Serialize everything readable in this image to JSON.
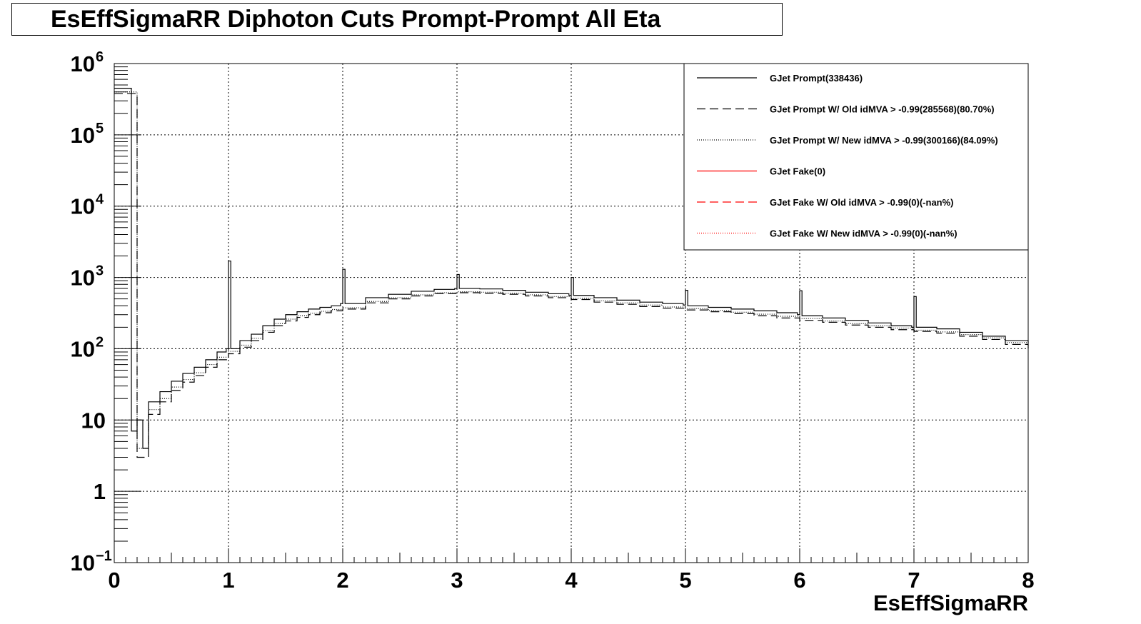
{
  "chart_data": {
    "type": "line",
    "title": "EsEffSigmaRR Diphoton Cuts Prompt-Prompt All Eta",
    "xlabel": "EsEffSigmaRR",
    "ylabel": "",
    "xlim": [
      0,
      8
    ],
    "ylim": [
      0.1,
      1000000
    ],
    "yscale": "log",
    "grid": true,
    "x_ticks": [
      "0",
      "1",
      "2",
      "3",
      "4",
      "5",
      "6",
      "7",
      "8"
    ],
    "y_ticks": [
      {
        "base": "10",
        "exp": "−1",
        "value": 0.1
      },
      {
        "base": "1",
        "exp": "",
        "value": 1
      },
      {
        "base": "10",
        "exp": "",
        "value": 10
      },
      {
        "base": "10",
        "exp": "2",
        "value": 100
      },
      {
        "base": "10",
        "exp": "3",
        "value": 1000
      },
      {
        "base": "10",
        "exp": "4",
        "value": 10000
      },
      {
        "base": "10",
        "exp": "5",
        "value": 100000
      },
      {
        "base": "10",
        "exp": "6",
        "value": 1000000
      }
    ],
    "legend_position": "top-right",
    "legend": [
      {
        "label": "GJet Prompt(338436)",
        "color": "#000000",
        "dash": "solid"
      },
      {
        "label": "GJet Prompt W/ Old idMVA > -0.99(285568)(80.70%)",
        "color": "#000000",
        "dash": "dashed"
      },
      {
        "label": "GJet Prompt W/ New idMVA > -0.99(300166)(84.09%)",
        "color": "#000000",
        "dash": "dotted"
      },
      {
        "label": "GJet Fake(0)",
        "color": "#ff0000",
        "dash": "solid"
      },
      {
        "label": "GJet Fake W/ Old idMVA > -0.99(0)(-nan%)",
        "color": "#ff0000",
        "dash": "dashed"
      },
      {
        "label": "GJet Fake W/ New idMVA > -0.99(0)(-nan%)",
        "color": "#ff0000",
        "dash": "dotted"
      }
    ],
    "series": [
      {
        "name": "GJet Prompt(338436)",
        "color": "#000000",
        "dash": "solid",
        "x": [
          0.0,
          0.15,
          0.2,
          0.25,
          0.3,
          0.4,
          0.5,
          0.6,
          0.7,
          0.8,
          0.9,
          0.98,
          1.0,
          1.02,
          1.1,
          1.2,
          1.3,
          1.4,
          1.5,
          1.6,
          1.7,
          1.8,
          1.9,
          1.98,
          2.0,
          2.02,
          2.2,
          2.4,
          2.6,
          2.8,
          2.98,
          3.0,
          3.02,
          3.2,
          3.4,
          3.6,
          3.8,
          3.98,
          4.0,
          4.02,
          4.2,
          4.4,
          4.6,
          4.8,
          4.98,
          5.0,
          5.02,
          5.2,
          5.4,
          5.6,
          5.8,
          5.98,
          6.0,
          6.02,
          6.2,
          6.4,
          6.6,
          6.8,
          6.98,
          7.0,
          7.02,
          7.2,
          7.4,
          7.6,
          7.8,
          8.0
        ],
        "y": [
          450000,
          7,
          10,
          4,
          18,
          25,
          35,
          45,
          55,
          70,
          90,
          100,
          1700,
          100,
          130,
          160,
          210,
          260,
          300,
          330,
          360,
          380,
          400,
          430,
          1300,
          430,
          520,
          580,
          640,
          680,
          700,
          1100,
          700,
          690,
          660,
          620,
          590,
          560,
          1000,
          560,
          520,
          480,
          450,
          430,
          410,
          660,
          400,
          380,
          360,
          340,
          320,
          300,
          650,
          290,
          270,
          250,
          230,
          210,
          200,
          540,
          200,
          190,
          170,
          150,
          130,
          120
        ]
      },
      {
        "name": "GJet Prompt W/ Old idMVA > -0.99(285568)(80.70%)",
        "color": "#000000",
        "dash": "dashed",
        "x": [
          0.0,
          0.2,
          0.3,
          0.4,
          0.5,
          0.6,
          0.7,
          0.8,
          0.9,
          1.0,
          1.1,
          1.2,
          1.3,
          1.4,
          1.5,
          1.6,
          1.7,
          1.8,
          1.9,
          2.0,
          2.2,
          2.4,
          2.6,
          2.8,
          3.0,
          3.2,
          3.4,
          3.6,
          3.8,
          4.0,
          4.2,
          4.4,
          4.6,
          4.8,
          5.0,
          5.2,
          5.4,
          5.6,
          5.8,
          6.0,
          6.2,
          6.4,
          6.6,
          6.8,
          7.0,
          7.2,
          7.4,
          7.6,
          7.8,
          8.0
        ],
        "y": [
          380000,
          3,
          12,
          18,
          26,
          34,
          42,
          55,
          70,
          85,
          105,
          130,
          170,
          210,
          245,
          275,
          300,
          320,
          340,
          360,
          440,
          500,
          550,
          590,
          610,
          600,
          580,
          550,
          520,
          490,
          450,
          420,
          390,
          370,
          350,
          330,
          310,
          290,
          270,
          250,
          235,
          215,
          200,
          185,
          175,
          165,
          150,
          135,
          115,
          100
        ]
      },
      {
        "name": "GJet Prompt W/ New idMVA > -0.99(300166)(84.09%)",
        "color": "#000000",
        "dash": "dotted",
        "x": [
          0.0,
          0.2,
          0.3,
          0.4,
          0.5,
          0.6,
          0.7,
          0.8,
          0.9,
          1.0,
          1.1,
          1.2,
          1.3,
          1.4,
          1.5,
          1.6,
          1.7,
          1.8,
          1.9,
          2.0,
          2.2,
          2.4,
          2.6,
          2.8,
          3.0,
          3.2,
          3.4,
          3.6,
          3.8,
          4.0,
          4.2,
          4.4,
          4.6,
          4.8,
          5.0,
          5.2,
          5.4,
          5.6,
          5.8,
          6.0,
          6.2,
          6.4,
          6.6,
          6.8,
          7.0,
          7.2,
          7.4,
          7.6,
          7.8,
          8.0
        ],
        "y": [
          400000,
          4,
          14,
          20,
          29,
          37,
          46,
          60,
          76,
          92,
          112,
          140,
          180,
          225,
          260,
          290,
          315,
          335,
          355,
          375,
          460,
          520,
          570,
          610,
          630,
          620,
          600,
          570,
          540,
          510,
          470,
          440,
          410,
          385,
          365,
          345,
          325,
          305,
          285,
          265,
          245,
          225,
          210,
          195,
          182,
          172,
          158,
          142,
          122,
          105
        ]
      },
      {
        "name": "GJet Fake(0)",
        "color": "#ff0000",
        "dash": "solid",
        "x": [],
        "y": []
      },
      {
        "name": "GJet Fake W/ Old idMVA > -0.99(0)(-nan%)",
        "color": "#ff0000",
        "dash": "dashed",
        "x": [],
        "y": []
      },
      {
        "name": "GJet Fake W/ New idMVA > -0.99(0)(-nan%)",
        "color": "#ff0000",
        "dash": "dotted",
        "x": [],
        "y": []
      }
    ]
  }
}
